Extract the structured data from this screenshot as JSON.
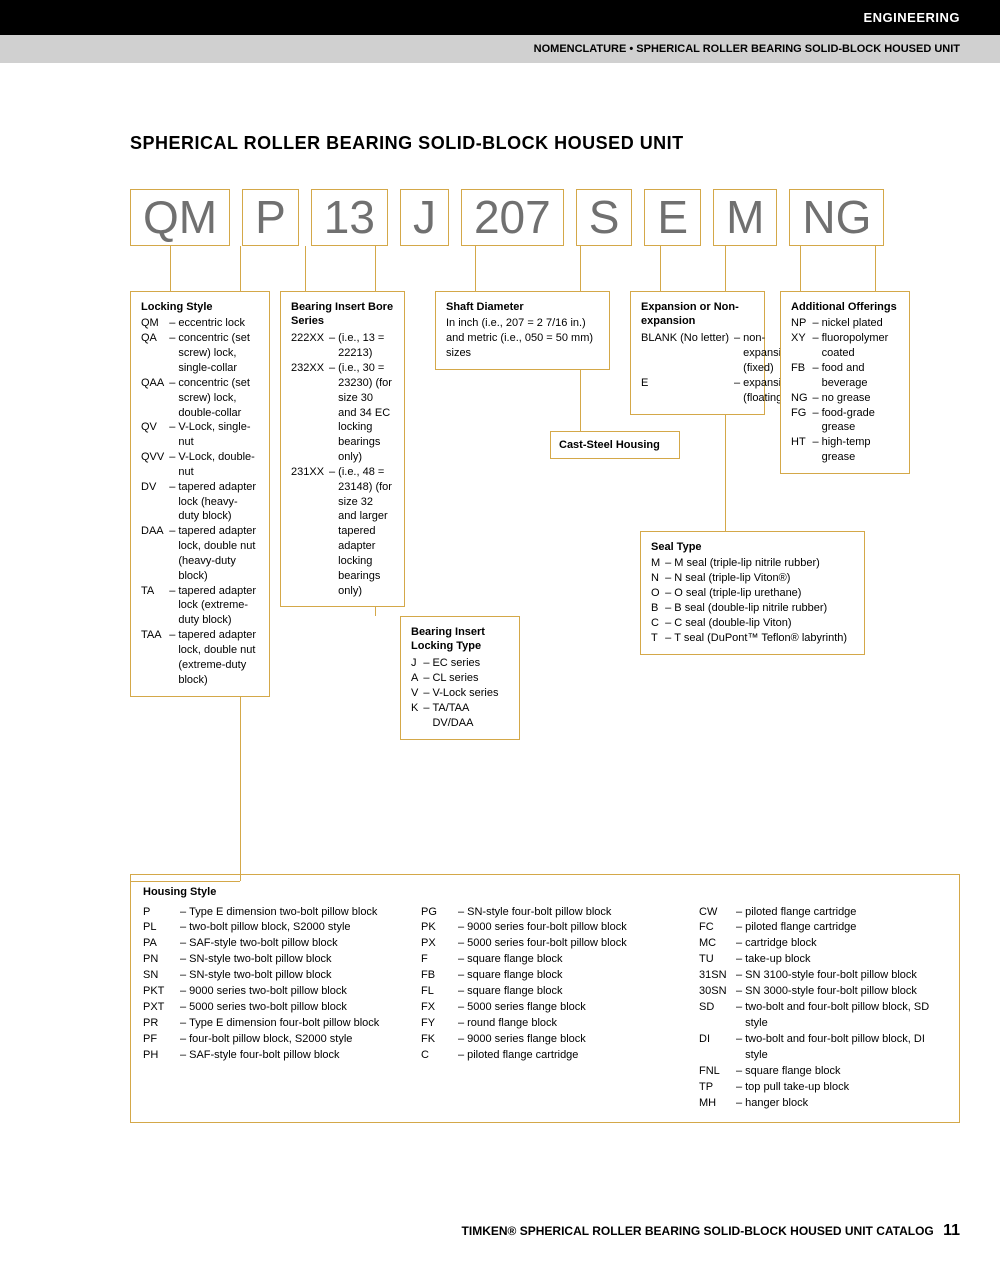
{
  "header": {
    "section": "ENGINEERING",
    "subtitle": "NOMENCLATURE • SPHERICAL ROLLER BEARING SOLID-BLOCK HOUSED UNIT"
  },
  "title": "SPHERICAL ROLLER BEARING SOLID-BLOCK HOUSED UNIT",
  "code": [
    "QM",
    "P",
    "13",
    "J",
    "207",
    "S",
    "E",
    "M",
    "NG"
  ],
  "locking_style": {
    "title": "Locking Style",
    "items": [
      [
        "QM",
        "eccentric lock"
      ],
      [
        "QA",
        "concentric (set screw) lock, single-collar"
      ],
      [
        "QAA",
        "concentric (set screw) lock, double-collar"
      ],
      [
        "QV",
        "V-Lock, single-nut"
      ],
      [
        "QVV",
        "V-Lock, double-nut"
      ],
      [
        "DV",
        "tapered adapter lock (heavy-duty block)"
      ],
      [
        "DAA",
        "tapered adapter lock, double nut (heavy-duty block)"
      ],
      [
        "TA",
        "tapered adapter lock (extreme-duty block)"
      ],
      [
        "TAA",
        "tapered adapter lock, double nut (extreme-duty block)"
      ]
    ]
  },
  "bore_series": {
    "title": "Bearing Insert Bore Series",
    "items": [
      [
        "222XX",
        "(i.e., 13 = 22213)"
      ],
      [
        "232XX",
        "(i.e., 30 = 23230) (for size 30 and 34 EC locking bearings only)"
      ],
      [
        "231XX",
        "(i.e., 48 = 23148) (for size 32 and larger tapered adapter locking bearings only)"
      ]
    ]
  },
  "locking_type": {
    "title": "Bearing Insert Locking Type",
    "items": [
      [
        "J",
        "EC series"
      ],
      [
        "A",
        "CL series"
      ],
      [
        "V",
        "V-Lock series"
      ],
      [
        "K",
        "TA/TAA DV/DAA"
      ]
    ]
  },
  "shaft_diameter": {
    "title": "Shaft Diameter",
    "text": "In inch (i.e., 207 = 2 7/16 in.) and metric (i.e., 050 = 50 mm) sizes"
  },
  "cast_steel": "Cast-Steel Housing",
  "expansion": {
    "title": "Expansion or Non-expansion",
    "items": [
      [
        "BLANK (No letter)",
        "non-expansion (fixed)"
      ],
      [
        "E",
        "expansion (floating)"
      ]
    ]
  },
  "seal_type": {
    "title": "Seal Type",
    "items": [
      [
        "M",
        "M seal (triple-lip nitrile rubber)"
      ],
      [
        "N",
        "N seal (triple-lip Viton®)"
      ],
      [
        "O",
        "O seal (triple-lip urethane)"
      ],
      [
        "B",
        "B seal (double-lip nitrile rubber)"
      ],
      [
        "C",
        "C seal (double-lip Viton)"
      ],
      [
        "T",
        "T seal (DuPont™ Teflon® labyrinth)"
      ]
    ]
  },
  "additional": {
    "title": "Additional Offerings",
    "items": [
      [
        "NP",
        "nickel plated"
      ],
      [
        "XY",
        "fluoropolymer coated"
      ],
      [
        "FB",
        "food and beverage"
      ],
      [
        "NG",
        "no grease"
      ],
      [
        "FG",
        "food-grade grease"
      ],
      [
        "HT",
        "high-temp grease"
      ]
    ]
  },
  "housing": {
    "title": "Housing Style",
    "col1": [
      [
        "P",
        "Type E dimension two-bolt pillow block"
      ],
      [
        "PL",
        "two-bolt pillow block, S2000 style"
      ],
      [
        "PA",
        "SAF-style two-bolt pillow block"
      ],
      [
        "PN",
        "SN-style two-bolt pillow block"
      ],
      [
        "SN",
        "SN-style two-bolt pillow block"
      ],
      [
        "PKT",
        "9000 series two-bolt pillow block"
      ],
      [
        "PXT",
        "5000 series two-bolt pillow block"
      ],
      [
        "PR",
        "Type E dimension four-bolt pillow block"
      ],
      [
        "PF",
        "four-bolt pillow block, S2000 style"
      ],
      [
        "PH",
        "SAF-style four-bolt pillow block"
      ]
    ],
    "col2": [
      [
        "PG",
        "SN-style four-bolt pillow block"
      ],
      [
        "PK",
        "9000 series four-bolt pillow block"
      ],
      [
        "PX",
        "5000 series four-bolt pillow block"
      ],
      [
        "F",
        "square flange block"
      ],
      [
        "FB",
        "square flange block"
      ],
      [
        "FL",
        "square flange block"
      ],
      [
        "FX",
        "5000 series flange block"
      ],
      [
        "FY",
        "round flange block"
      ],
      [
        "FK",
        "9000 series flange block"
      ],
      [
        "C",
        "piloted flange cartridge"
      ]
    ],
    "col3": [
      [
        "CW",
        "piloted flange cartridge"
      ],
      [
        "FC",
        "piloted flange cartridge"
      ],
      [
        "MC",
        "cartridge block"
      ],
      [
        "TU",
        "take-up block"
      ],
      [
        "31SN",
        "SN 3100-style four-bolt pillow block"
      ],
      [
        "30SN",
        "SN 3000-style four-bolt pillow block"
      ],
      [
        "SD",
        "two-bolt and four-bolt pillow block, SD style"
      ],
      [
        "DI",
        "two-bolt and four-bolt pillow block, DI style"
      ],
      [
        "FNL",
        "square flange block"
      ],
      [
        "TP",
        "top pull take-up block"
      ],
      [
        "MH",
        "hanger block"
      ]
    ]
  },
  "footer": {
    "brand": "TIMKEN®",
    "text": "SPHERICAL ROLLER BEARING SOLID-BLOCK HOUSED UNIT CATALOG",
    "page": "11"
  },
  "colors": {
    "accent": "#d4a849",
    "code_text": "#707070"
  }
}
